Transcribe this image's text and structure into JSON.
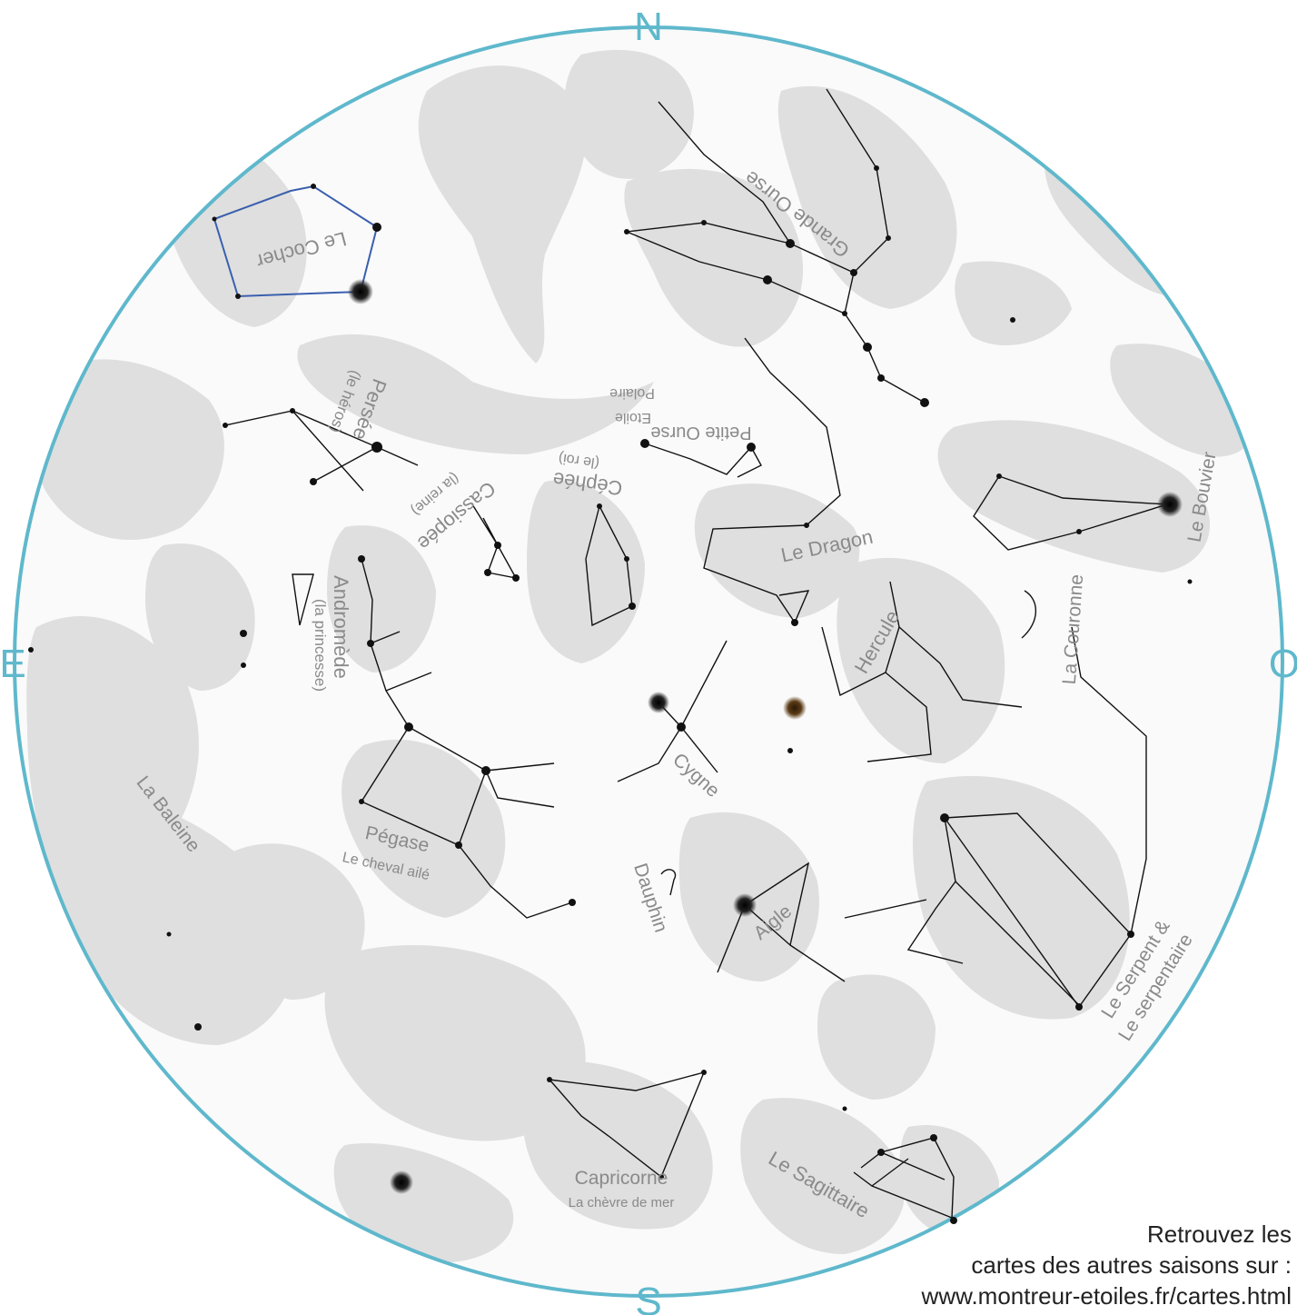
{
  "cardinals": {
    "north": "N",
    "south": "S",
    "east": "E",
    "west": "O"
  },
  "constellations": {
    "cocher": "Le Cocher",
    "grande_ourse": "Grande Ourse",
    "persee": "Persée",
    "persee_sub": "(le héros)",
    "etoile_polaire_1": "Etoile",
    "etoile_polaire_2": "Polaire",
    "petite_ourse": "Petite Ourse",
    "cassiopee": "Cassiopée",
    "cassiopee_sub": "(la reine)",
    "cephee": "Céphée",
    "cephee_sub": "(le roi)",
    "bouvier": "Le Bouvier",
    "dragon": "Le Dragon",
    "andromede": "Andromède",
    "andromede_sub": "(la princesse)",
    "hercule": "Hercule",
    "couronne": "La Couronne",
    "cygne": "Cygne",
    "baleine": "La Baleine",
    "pegase": "Pégase",
    "pegase_sub": "Le cheval ailé",
    "dauphin": "Dauphin",
    "aigle": "Aigle",
    "serpent_1": "Le Serpent &",
    "serpent_2": "Le serpentaire",
    "capricorne": "Capricorne",
    "capricorne_sub": "La chèvre de mer",
    "sagittaire": "Le Sagittaire"
  },
  "footer": {
    "line1": "Retrouvez les",
    "line2": "cartes des autres saisons sur :",
    "line3": "www.montreur-etoiles.fr/cartes.html"
  },
  "colors": {
    "horizon": "#5fb8cc",
    "figures": "#d4d4d4",
    "lines": "#111111",
    "cocher_lines": "#3a5fae"
  }
}
